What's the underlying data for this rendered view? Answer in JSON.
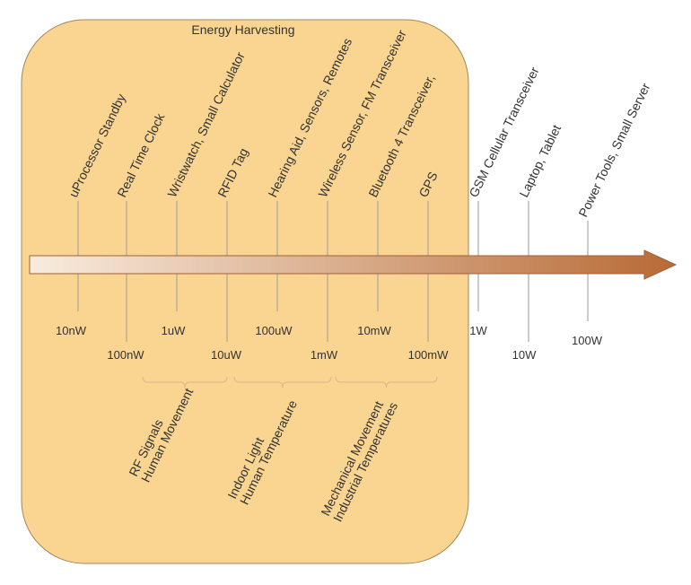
{
  "title": "Energy Harvesting",
  "applications": [
    "uProcessor Standby",
    "Real Time Clock",
    "Wristwatch, Small Calculator",
    "RFID Tag",
    "Hearing Aid, Sensors, Remotes",
    "Wireless Sensor, FM Transceiver",
    "Bluetooth 4 Transceiver,",
    "GPS",
    "GSM Cellular Transceiver",
    "Laptop, Tablet",
    "Power Tools, Small Server"
  ],
  "power_levels": [
    "10nW",
    "100nW",
    "1uW",
    "10uW",
    "100uW",
    "1mW",
    "10mW",
    "100mW",
    "1W",
    "10W",
    "100W"
  ],
  "harvesting_sources": [
    {
      "line1": "RF Signals",
      "line2": "Human Movement"
    },
    {
      "line1": "Indoor Light",
      "line2": "Human Temperature"
    },
    {
      "line1": "Mechanical Movement",
      "line2": "Industrial Temperatures"
    }
  ],
  "colors": {
    "region_fill": "#f9d591",
    "region_stroke": "#a08858",
    "arrow_start": "#f8ecdf",
    "arrow_end": "#b86a35",
    "tick_line": "#9a9a9a",
    "brace": "#d6b890"
  }
}
